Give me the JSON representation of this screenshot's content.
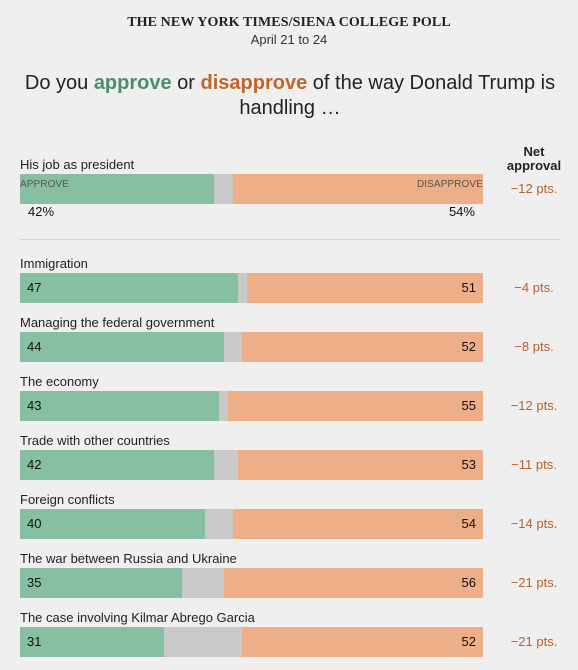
{
  "header": {
    "source": "THE NEW YORK TIMES/SIENA COLLEGE POLL",
    "dates": "April 21 to 24",
    "question": {
      "pre": "Do you ",
      "approve": "approve",
      "mid": " or ",
      "disapprove": "disapprove",
      "post": " of the way Donald Trump is handling …"
    },
    "net_header": [
      "Net",
      "approval"
    ]
  },
  "colors": {
    "approve": "#86bfa2",
    "neither": "#c9c9c9",
    "disapprove": "#edae88",
    "net_text": "#b5622c"
  },
  "chart_data": {
    "type": "bar",
    "orientation": "horizontal",
    "stacked": true,
    "xlim": [
      0,
      100
    ],
    "series_labels": {
      "approve": "APPROVE",
      "disapprove": "DISAPPROVE"
    },
    "rows": [
      {
        "label": "His job as president",
        "approve": 42,
        "disapprove": 54,
        "approve_text": "42%",
        "disapprove_text": "54%",
        "net": "−12 pts."
      },
      {
        "label": "Immigration",
        "approve": 47,
        "disapprove": 51,
        "approve_text": "47",
        "disapprove_text": "51",
        "net": "−4 pts."
      },
      {
        "label": "Managing the federal government",
        "approve": 44,
        "disapprove": 52,
        "approve_text": "44",
        "disapprove_text": "52",
        "net": "−8 pts."
      },
      {
        "label": "The economy",
        "approve": 43,
        "disapprove": 55,
        "approve_text": "43",
        "disapprove_text": "55",
        "net": "−12 pts."
      },
      {
        "label": "Trade with other countries",
        "approve": 42,
        "disapprove": 53,
        "approve_text": "42",
        "disapprove_text": "53",
        "net": "−11 pts."
      },
      {
        "label": "Foreign conflicts",
        "approve": 40,
        "disapprove": 54,
        "approve_text": "40",
        "disapprove_text": "54",
        "net": "−14 pts."
      },
      {
        "label": "The war between Russia and Ukraine",
        "approve": 35,
        "disapprove": 56,
        "approve_text": "35",
        "disapprove_text": "56",
        "net": "−21 pts."
      },
      {
        "label": "The case involving Kilmar Abrego Garcia",
        "approve": 31,
        "disapprove": 52,
        "approve_text": "31",
        "disapprove_text": "52",
        "net": "−21 pts."
      }
    ]
  }
}
